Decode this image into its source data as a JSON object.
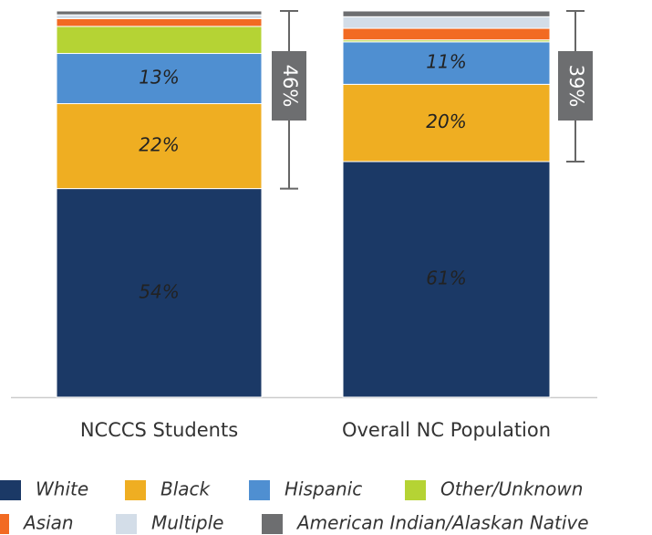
{
  "chart_data": {
    "type": "stacked_bar",
    "categories": [
      "NCCCS Students",
      "Overall NC Population"
    ],
    "series": [
      {
        "name": "White",
        "color": "#1b3966",
        "values": [
          54,
          61
        ],
        "value_labels": [
          "54%",
          "61%"
        ]
      },
      {
        "name": "Black",
        "color": "#efae22",
        "values": [
          22,
          20
        ],
        "value_labels": [
          "22%",
          "20%"
        ]
      },
      {
        "name": "Hispanic",
        "color": "#4f8fd1",
        "values": [
          13,
          11
        ],
        "value_labels": [
          "13%",
          "11%"
        ]
      },
      {
        "name": "Other/Unknown",
        "color": "#b5d334",
        "values": [
          7,
          0.5
        ]
      },
      {
        "name": "Asian",
        "color": "#f26a22",
        "values": [
          2,
          3
        ]
      },
      {
        "name": "Multiple",
        "color": "#d3dde8",
        "values": [
          1,
          3
        ]
      },
      {
        "name": "American Indian/Alaskan Native",
        "color": "#6d6e70",
        "values": [
          1,
          1.5
        ]
      }
    ],
    "annotations": [
      {
        "label": "46%",
        "value": 46
      },
      {
        "label": "39%",
        "value": 39
      }
    ]
  }
}
